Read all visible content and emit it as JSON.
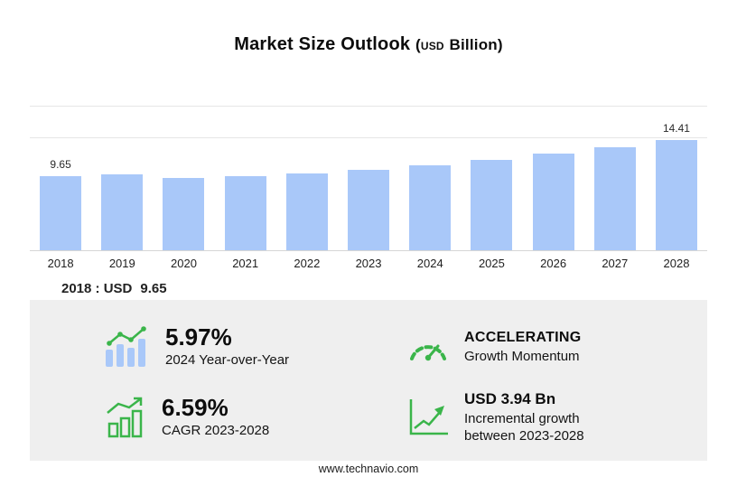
{
  "title": {
    "main": "Market Size Outlook",
    "open_paren": "(",
    "currency": "USD",
    "unit": "Billion",
    "close_paren": ")"
  },
  "chart_data": {
    "type": "bar",
    "title": "Market Size Outlook (USD Billion)",
    "categories": [
      "2018",
      "2019",
      "2020",
      "2021",
      "2022",
      "2023",
      "2024",
      "2025",
      "2026",
      "2027",
      "2028"
    ],
    "values": [
      9.65,
      9.93,
      9.41,
      9.6,
      9.95,
      10.47,
      11.09,
      11.81,
      12.58,
      13.44,
      14.41
    ],
    "value_labels": {
      "0": "9.65",
      "10": "14.41"
    },
    "bar_color": "#a9c8f9",
    "ylim": [
      0,
      16
    ],
    "grid": "partial-horizontal",
    "legend": "none"
  },
  "callout": {
    "year": "2018",
    "separator": ":",
    "currency": "USD",
    "value": "9.65"
  },
  "stats": [
    {
      "icon": "yoy-bars-trend-icon",
      "value": "5.97%",
      "label": "2024 Year-over-Year"
    },
    {
      "icon": "speedometer-icon",
      "value": "ACCELERATING",
      "label": "Growth Momentum"
    },
    {
      "icon": "cagr-bar-chart-icon",
      "value": "6.59%",
      "label": "CAGR 2023-2028"
    },
    {
      "icon": "incremental-line-chart-icon",
      "value": "USD 3.94 Bn",
      "label": "Incremental growth between 2023-2028"
    }
  ],
  "footer": {
    "url": "www.technavio.com"
  },
  "colors": {
    "bar": "#a9c8f9",
    "green": "#3ab54a",
    "panel": "#efefef"
  }
}
